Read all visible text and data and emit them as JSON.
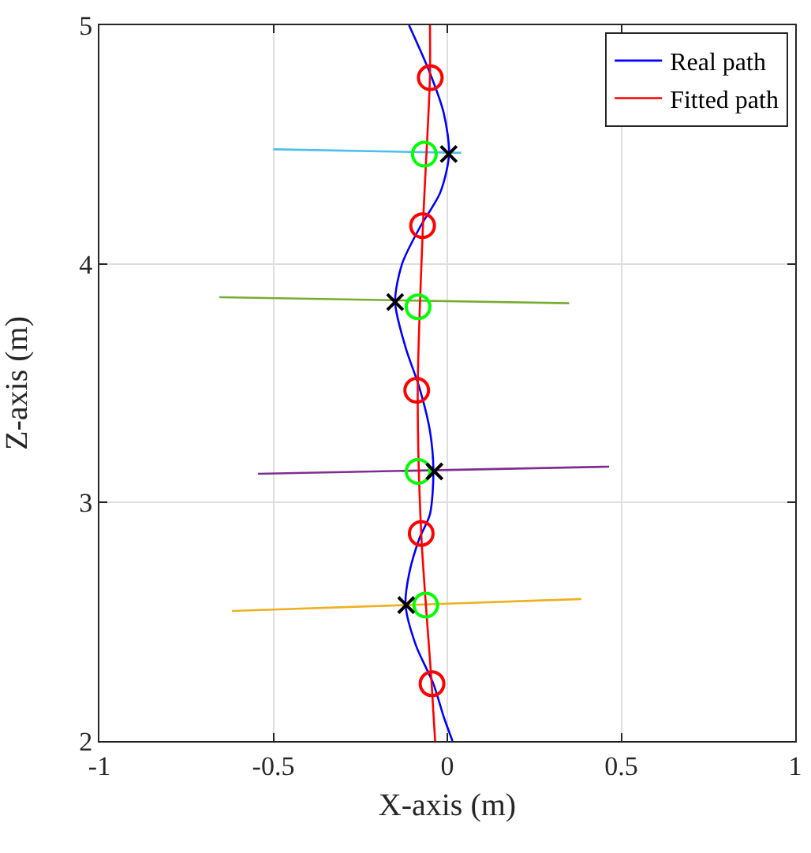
{
  "chart_data": {
    "type": "line",
    "xlabel": "X-axis (m)",
    "ylabel": "Z-axis (m)",
    "xlim": [
      -1,
      1
    ],
    "ylim": [
      2,
      5
    ],
    "xticks": [
      -1,
      -0.5,
      0,
      0.5,
      1
    ],
    "yticks": [
      2,
      3,
      4,
      5
    ],
    "grid": true,
    "legend": "top right",
    "series": [
      {
        "color": "#4dbeee",
        "x": [
          -0.5,
          0.04
        ],
        "values": [
          4.48,
          4.465
        ]
      },
      {
        "color": "#77ac30",
        "x": [
          -0.655,
          0.35
        ],
        "values": [
          3.86,
          3.835
        ]
      },
      {
        "color": "#7e2f8e",
        "x": [
          -0.544,
          0.465
        ],
        "values": [
          3.12,
          3.15
        ]
      },
      {
        "color": "#edb120",
        "x": [
          -0.619,
          0.385
        ],
        "values": [
          2.545,
          2.595
        ]
      },
      {
        "name": "Real path",
        "color": "#0000ff",
        "x": [
          -0.11,
          -0.05,
          -0.01,
          0.005,
          -0.02,
          -0.08,
          -0.13,
          -0.15,
          -0.12,
          -0.08,
          -0.05,
          -0.04,
          -0.05,
          -0.08,
          -0.11,
          -0.12,
          -0.09,
          -0.04,
          -0.01,
          0.015
        ],
        "values": [
          5,
          4.8,
          4.63,
          4.46,
          4.3,
          4.15,
          4,
          3.84,
          3.65,
          3.48,
          3.3,
          3.13,
          2.95,
          2.85,
          2.7,
          2.57,
          2.4,
          2.24,
          2.1,
          2
        ]
      },
      {
        "name": "Fitted path",
        "color": "#ff0000",
        "x": [
          -0.05,
          -0.05,
          -0.07,
          -0.085,
          -0.075,
          -0.045,
          -0.035
        ],
        "values": [
          5,
          4.78,
          4.16,
          3.47,
          2.87,
          2.24,
          2
        ]
      },
      {
        "type": "scatter",
        "marker": "circle",
        "color": "#ff0000",
        "x": [
          -0.049,
          -0.071,
          -0.088,
          -0.075,
          -0.044
        ],
        "values": [
          4.78,
          4.16,
          3.47,
          2.87,
          2.24
        ]
      },
      {
        "type": "scatter",
        "marker": "circle",
        "color": "#00ff00",
        "x": [
          -0.066,
          -0.084,
          -0.084,
          -0.062
        ],
        "values": [
          4.46,
          3.82,
          3.13,
          2.57
        ]
      },
      {
        "type": "scatter",
        "marker": "cross",
        "color": "#000000",
        "x": [
          0.004,
          -0.15,
          -0.037,
          -0.118
        ],
        "values": [
          4.46,
          3.84,
          3.13,
          2.57
        ]
      }
    ]
  }
}
